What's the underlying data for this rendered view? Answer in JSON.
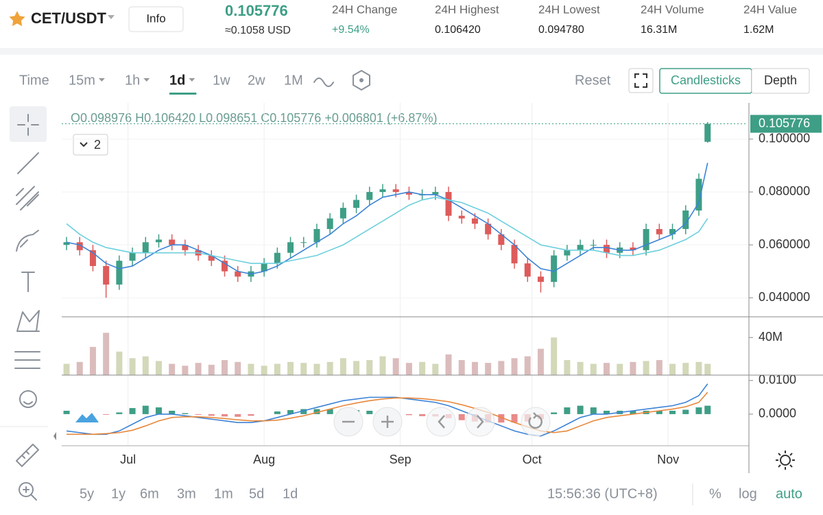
{
  "header": {
    "pair": "CET/USDT",
    "info": "Info",
    "price": "0.105776",
    "price_usd": "≈0.1058 USD",
    "stats": [
      {
        "label": "24H Change",
        "value": "+9.54%"
      },
      {
        "label": "24H Highest",
        "value": "0.106420"
      },
      {
        "label": "24H Lowest",
        "value": "0.094780"
      },
      {
        "label": "24H Volume",
        "value": "16.31M"
      },
      {
        "label": "24H Value",
        "value": "1.62M"
      }
    ]
  },
  "toolbar": {
    "time": "Time",
    "intervals": [
      "15m",
      "1h",
      "1d",
      "1w",
      "2w",
      "1M"
    ],
    "active_interval": "1d",
    "reset": "Reset",
    "tabs": [
      "Candlesticks",
      "Depth"
    ],
    "active_tab": "Candlesticks"
  },
  "legend": "O0.098976  H0.106420  L0.098651  C0.105776  +0.006801 (+6.87%)",
  "indicator_count": "2",
  "bottom": {
    "ranges": [
      "5y",
      "1y",
      "6m",
      "3m",
      "1m",
      "5d",
      "1d"
    ],
    "clock": "15:56:36 (UTC+8)",
    "options": [
      "%",
      "log",
      "auto"
    ],
    "active_option": "auto"
  },
  "chart_data": {
    "type": "candlestick",
    "x": [
      0,
      3,
      6,
      9,
      12,
      15,
      18,
      21,
      24,
      27,
      30,
      33,
      36,
      39,
      42,
      45,
      48,
      51,
      54,
      57,
      60,
      63,
      66,
      69,
      72,
      75,
      78,
      81,
      84,
      87,
      90,
      93,
      96,
      99,
      102,
      105,
      108,
      111,
      114,
      117,
      120,
      123,
      126,
      129,
      132,
      135,
      138,
      141,
      144,
      146
    ],
    "xlim": [
      -1.1,
      155.1
    ],
    "xticks": [
      {
        "value": 14,
        "label": "Jul"
      },
      {
        "value": 45,
        "label": "Aug"
      },
      {
        "value": 76,
        "label": "Sep"
      },
      {
        "value": 106,
        "label": "Oct"
      },
      {
        "value": 137,
        "label": "Nov"
      }
    ],
    "open": [
      0.06,
      0.061,
      0.058,
      0.052,
      0.045,
      0.054,
      0.057,
      0.061,
      0.062,
      0.06,
      0.058,
      0.056,
      0.054,
      0.05,
      0.048,
      0.05,
      0.053,
      0.057,
      0.061,
      0.061,
      0.066,
      0.07,
      0.074,
      0.077,
      0.08,
      0.081,
      0.08,
      0.079,
      0.079,
      0.08,
      0.071,
      0.07,
      0.068,
      0.064,
      0.06,
      0.053,
      0.048,
      0.046,
      0.056,
      0.058,
      0.06,
      0.06,
      0.057,
      0.059,
      0.058,
      0.066,
      0.064,
      0.066,
      0.073,
      0.098976
    ],
    "high": [
      0.063,
      0.063,
      0.06,
      0.054,
      0.056,
      0.059,
      0.063,
      0.064,
      0.064,
      0.062,
      0.06,
      0.058,
      0.056,
      0.052,
      0.052,
      0.055,
      0.059,
      0.063,
      0.063,
      0.068,
      0.072,
      0.076,
      0.079,
      0.082,
      0.083,
      0.083,
      0.082,
      0.081,
      0.082,
      0.082,
      0.073,
      0.072,
      0.07,
      0.066,
      0.062,
      0.055,
      0.05,
      0.058,
      0.06,
      0.062,
      0.062,
      0.062,
      0.061,
      0.061,
      0.068,
      0.068,
      0.068,
      0.075,
      0.087,
      0.10642
    ],
    "low": [
      0.058,
      0.056,
      0.05,
      0.04,
      0.043,
      0.052,
      0.055,
      0.059,
      0.058,
      0.056,
      0.054,
      0.052,
      0.048,
      0.046,
      0.046,
      0.048,
      0.051,
      0.055,
      0.059,
      0.059,
      0.064,
      0.068,
      0.072,
      0.075,
      0.078,
      0.078,
      0.077,
      0.077,
      0.077,
      0.069,
      0.068,
      0.066,
      0.062,
      0.058,
      0.051,
      0.046,
      0.042,
      0.044,
      0.054,
      0.056,
      0.058,
      0.055,
      0.055,
      0.056,
      0.056,
      0.062,
      0.062,
      0.064,
      0.071,
      0.098651
    ],
    "close": [
      0.061,
      0.058,
      0.052,
      0.045,
      0.054,
      0.057,
      0.061,
      0.062,
      0.06,
      0.058,
      0.056,
      0.054,
      0.05,
      0.048,
      0.05,
      0.053,
      0.057,
      0.061,
      0.061,
      0.066,
      0.07,
      0.074,
      0.077,
      0.08,
      0.081,
      0.08,
      0.079,
      0.079,
      0.08,
      0.071,
      0.07,
      0.068,
      0.064,
      0.06,
      0.053,
      0.048,
      0.046,
      0.056,
      0.058,
      0.06,
      0.06,
      0.057,
      0.059,
      0.058,
      0.066,
      0.064,
      0.066,
      0.073,
      0.085,
      0.105776
    ],
    "up_color": "#3e9e86",
    "down_color": "#de5b5b",
    "moving_averages": [
      {
        "color": "#3b82d6",
        "values": [
          0.061,
          0.06,
          0.057,
          0.053,
          0.051,
          0.052,
          0.055,
          0.058,
          0.06,
          0.06,
          0.058,
          0.056,
          0.053,
          0.05,
          0.049,
          0.05,
          0.052,
          0.055,
          0.058,
          0.061,
          0.064,
          0.068,
          0.071,
          0.075,
          0.078,
          0.079,
          0.08,
          0.079,
          0.079,
          0.077,
          0.074,
          0.071,
          0.068,
          0.064,
          0.06,
          0.055,
          0.051,
          0.05,
          0.053,
          0.056,
          0.059,
          0.059,
          0.058,
          0.058,
          0.06,
          0.062,
          0.064,
          0.068,
          0.076,
          0.091
        ]
      },
      {
        "color": "#6ccfdc",
        "values": [
          0.068,
          0.064,
          0.061,
          0.059,
          0.058,
          0.057,
          0.057,
          0.057,
          0.057,
          0.057,
          0.057,
          0.056,
          0.055,
          0.054,
          0.053,
          0.053,
          0.053,
          0.054,
          0.055,
          0.056,
          0.058,
          0.06,
          0.063,
          0.066,
          0.069,
          0.072,
          0.075,
          0.077,
          0.078,
          0.077,
          0.076,
          0.074,
          0.072,
          0.069,
          0.066,
          0.063,
          0.06,
          0.059,
          0.058,
          0.058,
          0.058,
          0.057,
          0.056,
          0.056,
          0.057,
          0.058,
          0.06,
          0.062,
          0.065,
          0.07
        ]
      }
    ],
    "ylim": [
      0.0328,
      0.1137
    ],
    "yticks": [
      {
        "value": 0.04,
        "label": "0.040000"
      },
      {
        "value": 0.06,
        "label": "0.060000"
      },
      {
        "value": 0.08,
        "label": "0.080000"
      },
      {
        "value": 0.1,
        "label": "0.100000"
      }
    ],
    "last_price": 0.105776,
    "grid": true,
    "volume": {
      "values": [
        12000000,
        14000000,
        30000000,
        45000000,
        25000000,
        18000000,
        20000000,
        15000000,
        12000000,
        10000000,
        13000000,
        11000000,
        16000000,
        14000000,
        12000000,
        10000000,
        12000000,
        14000000,
        13000000,
        12000000,
        14000000,
        18000000,
        15000000,
        16000000,
        20000000,
        18000000,
        13000000,
        14000000,
        12000000,
        22000000,
        16000000,
        14000000,
        13000000,
        15000000,
        18000000,
        20000000,
        28000000,
        40000000,
        16000000,
        14000000,
        12000000,
        13000000,
        12000000,
        14000000,
        15000000,
        16000000,
        12000000,
        13000000,
        14000000,
        12000000
      ],
      "up_color": "#d3d8b9",
      "down_color": "#dbbcbc",
      "ylim": [
        0,
        62000000
      ],
      "yticks": [
        {
          "value": 40000000,
          "label": "40M"
        }
      ]
    },
    "macd": {
      "dif": {
        "color": "#3b82d6",
        "values": [
          -0.005,
          -0.0055,
          -0.006,
          -0.006,
          -0.005,
          -0.003,
          -0.001,
          0.0,
          0.0,
          -0.0005,
          -0.001,
          -0.0015,
          -0.002,
          -0.0025,
          -0.0025,
          -0.002,
          -0.001,
          0.0,
          0.001,
          0.002,
          0.003,
          0.004,
          0.0045,
          0.005,
          0.005,
          0.005,
          0.0045,
          0.004,
          0.0035,
          0.0025,
          0.001,
          -0.0005,
          -0.002,
          -0.0035,
          -0.005,
          -0.006,
          -0.0065,
          -0.005,
          -0.003,
          -0.001,
          0.0,
          0.0,
          0.0005,
          0.001,
          0.0015,
          0.002,
          0.0025,
          0.0035,
          0.0055,
          0.009
        ]
      },
      "dea": {
        "color": "#e8873a",
        "values": [
          -0.006,
          -0.006,
          -0.006,
          -0.0058,
          -0.0055,
          -0.0048,
          -0.0035,
          -0.002,
          -0.001,
          -0.0008,
          -0.0008,
          -0.001,
          -0.0013,
          -0.0017,
          -0.002,
          -0.002,
          -0.0018,
          -0.0012,
          -0.0005,
          0.0005,
          0.0015,
          0.0025,
          0.0033,
          0.004,
          0.0045,
          0.0048,
          0.0048,
          0.0046,
          0.0042,
          0.0037,
          0.0028,
          0.0017,
          0.0005,
          -0.001,
          -0.0025,
          -0.0038,
          -0.005,
          -0.0055,
          -0.005,
          -0.0035,
          -0.002,
          -0.001,
          -0.0005,
          0.0,
          0.0005,
          0.001,
          0.0015,
          0.0022,
          0.0035,
          0.0065
        ]
      },
      "histogram": [
        0.001,
        0.0005,
        0.0,
        -0.0002,
        0.0005,
        0.0018,
        0.0025,
        0.002,
        0.001,
        0.0003,
        -0.0002,
        -0.0005,
        -0.0007,
        -0.0008,
        -0.0005,
        0.0,
        0.0008,
        0.0012,
        0.0015,
        0.0015,
        0.0015,
        0.0015,
        0.0012,
        0.001,
        0.0005,
        0.0002,
        -0.0003,
        -0.0006,
        -0.0007,
        -0.0012,
        -0.0018,
        -0.0022,
        -0.0025,
        -0.0025,
        -0.0025,
        -0.0022,
        -0.0015,
        0.0005,
        0.002,
        0.0025,
        0.002,
        0.001,
        0.001,
        0.001,
        0.001,
        0.001,
        0.001,
        0.0013,
        0.002,
        0.0025
      ],
      "up_color": "#3e9e86",
      "down_color": "#e88a8a",
      "ylim": [
        -0.0094,
        0.0116
      ],
      "yticks": [
        {
          "value": 0.0,
          "label": "0.0000"
        },
        {
          "value": 0.01,
          "label": "0.0100"
        }
      ]
    }
  }
}
